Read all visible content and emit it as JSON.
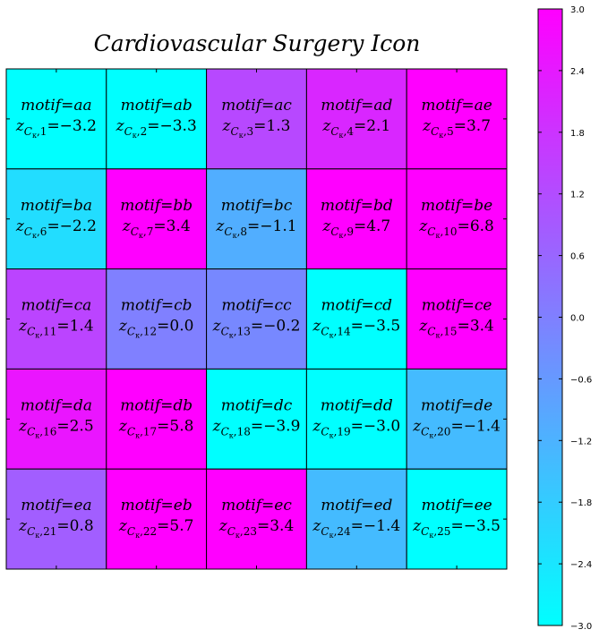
{
  "chart_data": {
    "type": "heatmap",
    "title": "Cardiovascular Surgery Icon",
    "rows": 5,
    "cols": 5,
    "motif_prefix": "motif=",
    "z_symbol": "z",
    "z_subscript": "C",
    "z_sub_sub": "κ",
    "cells": [
      {
        "motif": "aa",
        "index": 1,
        "z": "−3.2",
        "value": -3.2
      },
      {
        "motif": "ab",
        "index": 2,
        "z": "−3.3",
        "value": -3.3
      },
      {
        "motif": "ac",
        "index": 3,
        "z": "1.3",
        "value": 1.3
      },
      {
        "motif": "ad",
        "index": 4,
        "z": "2.1",
        "value": 2.1
      },
      {
        "motif": "ae",
        "index": 5,
        "z": "3.7",
        "value": 3.7
      },
      {
        "motif": "ba",
        "index": 6,
        "z": "−2.2",
        "value": -2.2
      },
      {
        "motif": "bb",
        "index": 7,
        "z": "3.4",
        "value": 3.4
      },
      {
        "motif": "bc",
        "index": 8,
        "z": "−1.1",
        "value": -1.1
      },
      {
        "motif": "bd",
        "index": 9,
        "z": "4.7",
        "value": 4.7
      },
      {
        "motif": "be",
        "index": 10,
        "z": "6.8",
        "value": 6.8
      },
      {
        "motif": "ca",
        "index": 11,
        "z": "1.4",
        "value": 1.4
      },
      {
        "motif": "cb",
        "index": 12,
        "z": "0.0",
        "value": 0.0
      },
      {
        "motif": "cc",
        "index": 13,
        "z": "−0.2",
        "value": -0.2
      },
      {
        "motif": "cd",
        "index": 14,
        "z": "−3.5",
        "value": -3.5
      },
      {
        "motif": "ce",
        "index": 15,
        "z": "3.4",
        "value": 3.4
      },
      {
        "motif": "da",
        "index": 16,
        "z": "2.5",
        "value": 2.5
      },
      {
        "motif": "db",
        "index": 17,
        "z": "5.8",
        "value": 5.8
      },
      {
        "motif": "dc",
        "index": 18,
        "z": "−3.9",
        "value": -3.9
      },
      {
        "motif": "dd",
        "index": 19,
        "z": "−3.0",
        "value": -3.0
      },
      {
        "motif": "de",
        "index": 20,
        "z": "−1.4",
        "value": -1.4
      },
      {
        "motif": "ea",
        "index": 21,
        "z": "0.8",
        "value": 0.8
      },
      {
        "motif": "eb",
        "index": 22,
        "z": "5.7",
        "value": 5.7
      },
      {
        "motif": "ec",
        "index": 23,
        "z": "3.4",
        "value": 3.4
      },
      {
        "motif": "ed",
        "index": 24,
        "z": "−1.4",
        "value": -1.4
      },
      {
        "motif": "ee",
        "index": 25,
        "z": "−3.5",
        "value": -3.5
      }
    ],
    "colorbar": {
      "min": -3.0,
      "max": 3.0,
      "colormap": "cool",
      "color_min": "#00ffff",
      "color_max": "#ff00ff",
      "ticks": [
        {
          "value": 3.0,
          "label": "3.0"
        },
        {
          "value": 2.4,
          "label": "2.4"
        },
        {
          "value": 1.8,
          "label": "1.8"
        },
        {
          "value": 1.2,
          "label": "1.2"
        },
        {
          "value": 0.6,
          "label": "0.6"
        },
        {
          "value": 0.0,
          "label": "0.0"
        },
        {
          "value": -0.6,
          "label": "−0.6"
        },
        {
          "value": -1.2,
          "label": "−1.2"
        },
        {
          "value": -1.8,
          "label": "−1.8"
        },
        {
          "value": -2.4,
          "label": "−2.4"
        },
        {
          "value": -3.0,
          "label": "−3.0"
        }
      ]
    }
  }
}
